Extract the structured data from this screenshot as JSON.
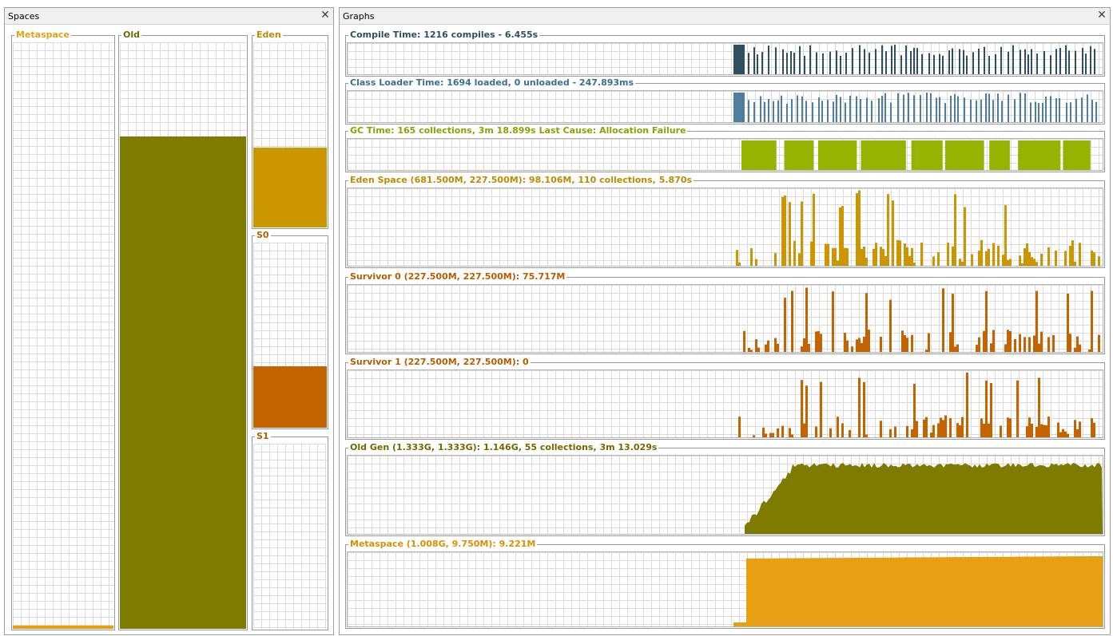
{
  "spaces_panel": {
    "title": "Spaces",
    "spaces": [
      {
        "label": "Metaspace",
        "color": "#E8A012",
        "fill_fraction": 0.006
      },
      {
        "label": "Old",
        "color": "#7F7B00",
        "fill_fraction": 0.84
      },
      {
        "label": "Eden",
        "color": "#CC9600",
        "fill_fraction": 0.43
      },
      {
        "label": "S0",
        "color": "#C46400",
        "fill_fraction": 0.33
      },
      {
        "label": "S1",
        "color": "#C46400",
        "fill_fraction": 0.0
      }
    ]
  },
  "graphs_panel": {
    "title": "Graphs",
    "graphs": [
      {
        "title": "Compile Time: 1216 compiles - 6.455s",
        "color": "#2F4F5F",
        "fill": "#2F4F5F"
      },
      {
        "title": "Class Loader Time: 1694 loaded, 0 unloaded - 247.893ms",
        "color": "#3C6E8E",
        "fill": "#4E7D9E"
      },
      {
        "title": "GC Time: 165 collections, 3m 18.899s  Last Cause: Allocation Failure",
        "color": "#8AA300",
        "fill": "#95B300"
      },
      {
        "title": "Eden Space (681.500M, 227.500M): 98.106M, 110 collections, 5.870s",
        "color": "#C08A00",
        "fill": "#CC9600"
      },
      {
        "title": "Survivor 0 (227.500M, 227.500M): 75.717M",
        "color": "#B85C00",
        "fill": "#C46400"
      },
      {
        "title": "Survivor 1 (227.500M, 227.500M): 0",
        "color": "#B85C00",
        "fill": "#C46400"
      },
      {
        "title": "Old Gen (1.333G, 1.333G): 1.146G, 55 collections, 3m 13.029s",
        "color": "#6E6A00",
        "fill": "#7F7B00"
      },
      {
        "title": "Metaspace (1.008G, 9.750M): 9.221M",
        "color": "#D89000",
        "fill": "#E8A012"
      }
    ]
  },
  "icons": {
    "close": "close-icon"
  }
}
